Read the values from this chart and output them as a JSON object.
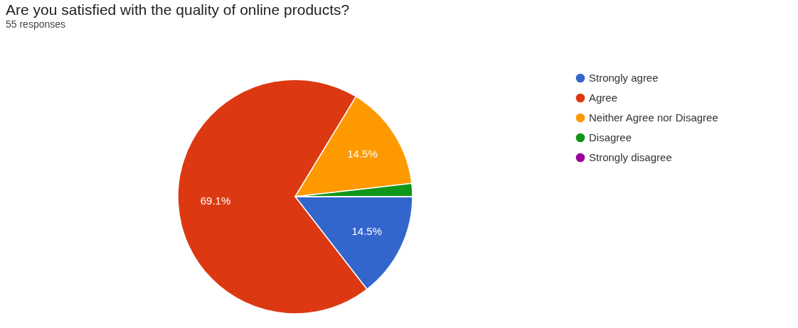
{
  "chart_data": {
    "type": "pie",
    "title": "Are you satisfied with the quality of online products?",
    "subtitle": "55 responses",
    "categories": [
      "Strongly agree",
      "Agree",
      "Neither Agree nor Disagree",
      "Disagree",
      "Strongly disagree"
    ],
    "values": [
      14.5,
      69.1,
      14.5,
      1.8,
      0
    ],
    "colors": [
      "#3366cc",
      "#dc3912",
      "#ff9900",
      "#109618",
      "#990099"
    ],
    "value_labels": [
      "14.5%",
      "69.1%",
      "14.5%",
      null,
      null
    ],
    "legend": "right"
  }
}
